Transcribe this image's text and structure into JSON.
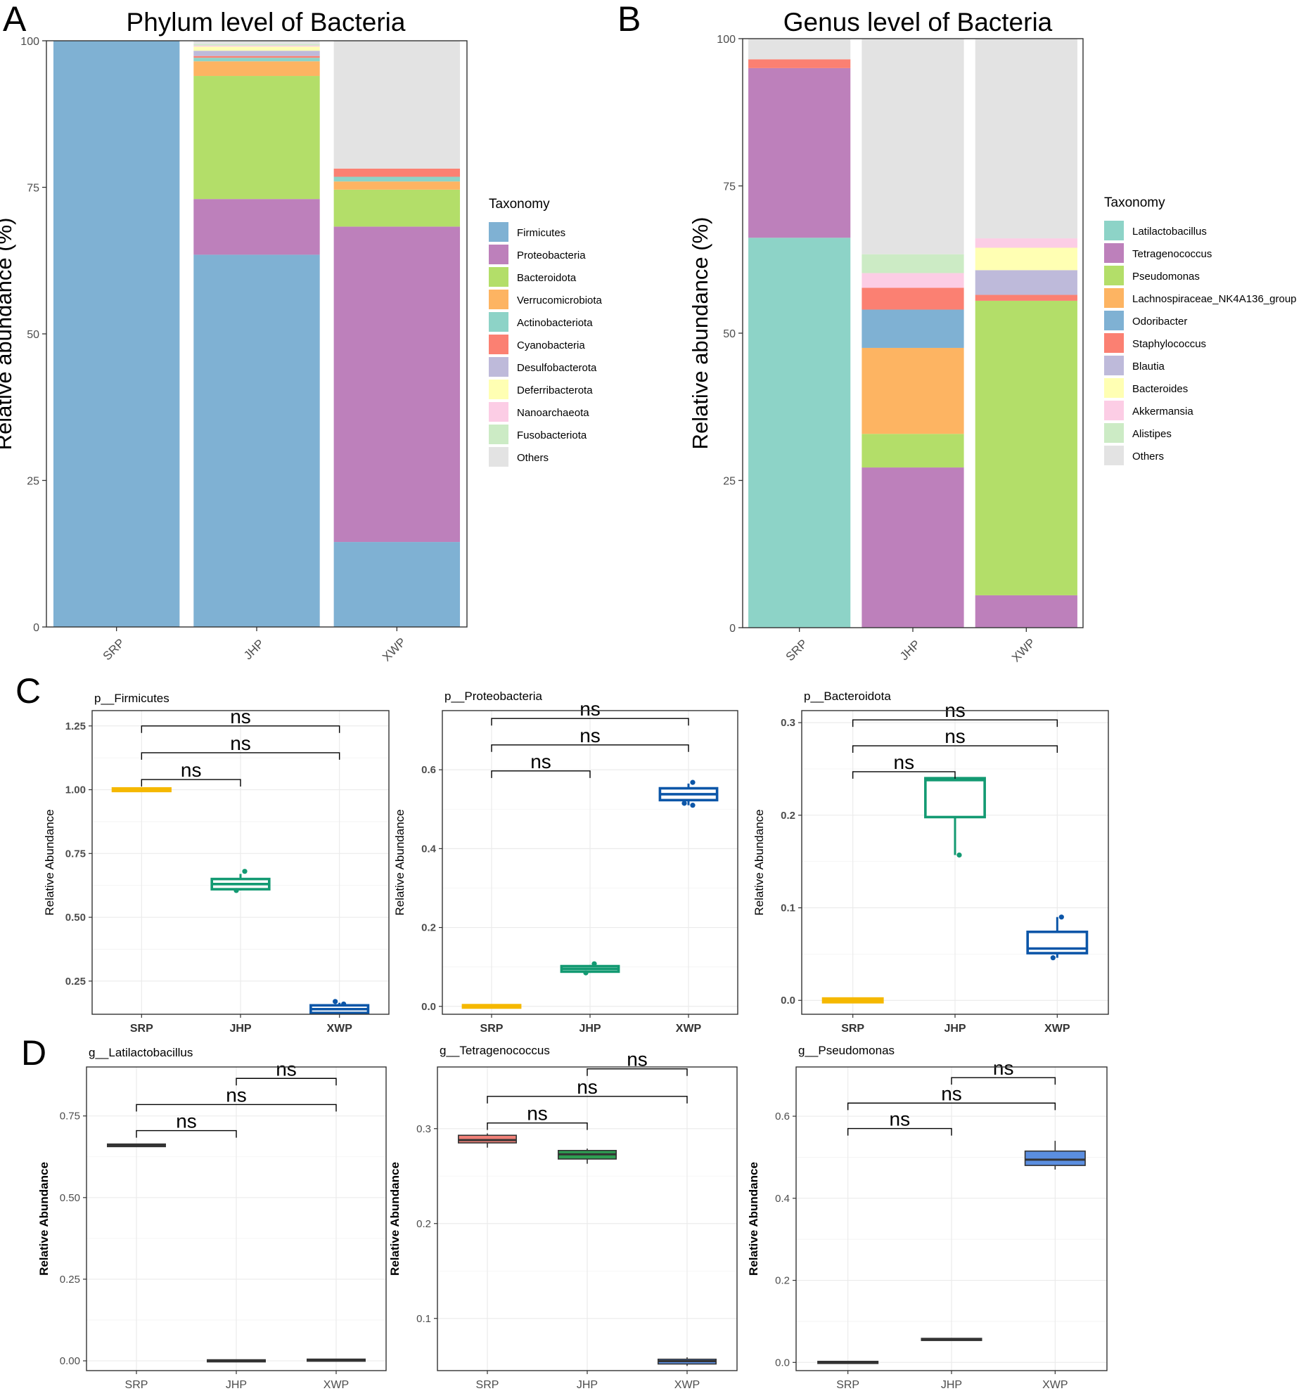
{
  "panel_letters": [
    "A",
    "B",
    "C",
    "D"
  ],
  "chart_data": [
    {
      "panel": "A",
      "type": "bar",
      "stacked": true,
      "title": "Phylum level of Bacteria",
      "xlabel": "",
      "ylabel": "Relative abundance (%)",
      "ylim": [
        0,
        100
      ],
      "yticks": [
        0,
        25,
        50,
        75,
        100
      ],
      "categories": [
        "SRP",
        "JHP",
        "XWP"
      ],
      "legend_title": "Taxonomy",
      "legend_position": "right",
      "series": [
        {
          "name": "Firmicutes",
          "color": "#7fb1d3",
          "values": [
            100,
            63.5,
            14.5
          ]
        },
        {
          "name": "Proteobacteria",
          "color": "#bd80bb",
          "values": [
            0,
            9.5,
            53.8
          ]
        },
        {
          "name": "Bacteroidota",
          "color": "#b3de69",
          "values": [
            0,
            21.0,
            6.3
          ]
        },
        {
          "name": "Verrucomicrobiota",
          "color": "#fdb462",
          "values": [
            0,
            2.5,
            1.4
          ]
        },
        {
          "name": "Actinobacteriota",
          "color": "#8dd3c7",
          "values": [
            0,
            0.6,
            0.8
          ]
        },
        {
          "name": "Cyanobacteria",
          "color": "#fb8072",
          "values": [
            0,
            0.3,
            1.4
          ]
        },
        {
          "name": "Desulfobacterota",
          "color": "#bebada",
          "values": [
            0,
            0.9,
            0
          ]
        },
        {
          "name": "Deferribacterota",
          "color": "#ffffb3",
          "values": [
            0,
            0.7,
            0
          ]
        },
        {
          "name": "Nanoarchaeota",
          "color": "#fccde5",
          "values": [
            0,
            0.2,
            0
          ]
        },
        {
          "name": "Fusobacteriota",
          "color": "#ccebc5",
          "values": [
            0,
            0.2,
            0
          ]
        },
        {
          "name": "Others",
          "color": "#e3e3e3",
          "values": [
            0,
            0.6,
            21.8
          ]
        }
      ]
    },
    {
      "panel": "B",
      "type": "bar",
      "stacked": true,
      "title": "Genus level of Bacteria",
      "xlabel": "",
      "ylabel": "Relative abundance (%)",
      "ylim": [
        0,
        100
      ],
      "yticks": [
        0,
        25,
        50,
        75,
        100
      ],
      "categories": [
        "SRP",
        "JHP",
        "XWP"
      ],
      "legend_title": "Taxonomy",
      "legend_position": "right",
      "series": [
        {
          "name": "Latilactobacillus",
          "color": "#8dd3c7",
          "values": [
            66.2,
            0,
            0
          ]
        },
        {
          "name": "Tetragenococcus",
          "color": "#bd80bb",
          "values": [
            28.8,
            27.2,
            5.5
          ]
        },
        {
          "name": "Pseudomonas",
          "color": "#b3de69",
          "values": [
            0,
            5.7,
            50.0
          ]
        },
        {
          "name": "Lachnospiraceae_NK4A136_group",
          "color": "#fdb462",
          "values": [
            0,
            14.6,
            0
          ]
        },
        {
          "name": "Odoribacter",
          "color": "#7fb1d3",
          "values": [
            0,
            6.5,
            0
          ]
        },
        {
          "name": "Staphylococcus",
          "color": "#fb8072",
          "values": [
            1.5,
            3.7,
            1.0
          ]
        },
        {
          "name": "Blautia",
          "color": "#bebada",
          "values": [
            0,
            0,
            4.2
          ]
        },
        {
          "name": "Bacteroides",
          "color": "#ffffb3",
          "values": [
            0,
            0,
            3.8
          ]
        },
        {
          "name": "Akkermansia",
          "color": "#fccde5",
          "values": [
            0,
            2.5,
            1.6
          ]
        },
        {
          "name": "Alistipes",
          "color": "#ccebc5",
          "values": [
            0,
            3.2,
            0
          ]
        },
        {
          "name": "Others",
          "color": "#e3e3e3",
          "values": [
            3.5,
            36.6,
            33.9
          ]
        }
      ]
    },
    {
      "panel": "C",
      "type": "box",
      "title": "p__Firmicutes",
      "ylabel": "Relative Abundance",
      "ylim": [
        0.12,
        1.31
      ],
      "yticks": [
        "0.25",
        "0.50",
        "0.75",
        "1.00",
        "1.25"
      ],
      "categories": [
        "SRP",
        "JHP",
        "XWP"
      ],
      "colors": [
        "#f5b800",
        "#139a72",
        "#0c56a8"
      ],
      "filled": false,
      "boxes": [
        {
          "q1": 0.995,
          "median": 1.0,
          "q3": 1.005,
          "wlo": 0.995,
          "whi": 1.005,
          "points": []
        },
        {
          "q1": 0.61,
          "median": 0.63,
          "q3": 0.65,
          "wlo": 0.605,
          "whi": 0.67,
          "points": [
            0.68,
            0.605
          ]
        },
        {
          "q1": 0.125,
          "median": 0.14,
          "q3": 0.155,
          "wlo": 0.125,
          "whi": 0.165,
          "points": [
            0.16,
            0.17
          ]
        }
      ],
      "brackets": [
        {
          "from": 0,
          "to": 1,
          "y": 1.04,
          "label": "ns"
        },
        {
          "from": 0,
          "to": 2,
          "y": 1.145,
          "label": "ns"
        },
        {
          "from": 0,
          "to": 2,
          "y": 1.25,
          "label": "ns"
        }
      ]
    },
    {
      "panel": "C",
      "type": "box",
      "title": "p__Proteobacteria",
      "ylabel": "Relative Abundance",
      "ylim": [
        -0.02,
        0.75
      ],
      "yticks": [
        "0.0",
        "0.2",
        "0.4",
        "0.6"
      ],
      "categories": [
        "SRP",
        "JHP",
        "XWP"
      ],
      "colors": [
        "#f5b800",
        "#139a72",
        "#0c56a8"
      ],
      "filled": false,
      "boxes": [
        {
          "q1": -0.003,
          "median": 0.0,
          "q3": 0.003,
          "wlo": -0.003,
          "whi": 0.003,
          "points": []
        },
        {
          "q1": 0.088,
          "median": 0.095,
          "q3": 0.102,
          "wlo": 0.085,
          "whi": 0.105,
          "points": [
            0.108,
            0.085
          ]
        },
        {
          "q1": 0.523,
          "median": 0.538,
          "q3": 0.553,
          "wlo": 0.51,
          "whi": 0.565,
          "points": [
            0.568,
            0.515,
            0.51
          ]
        }
      ],
      "brackets": [
        {
          "from": 0,
          "to": 1,
          "y": 0.597,
          "label": "ns"
        },
        {
          "from": 0,
          "to": 2,
          "y": 0.663,
          "label": "ns"
        },
        {
          "from": 0,
          "to": 2,
          "y": 0.73,
          "label": "ns"
        }
      ]
    },
    {
      "panel": "C",
      "type": "box",
      "title": "p__Bacteroidota",
      "ylabel": "Relative Abundance",
      "ylim": [
        -0.015,
        0.313
      ],
      "yticks": [
        "0.0",
        "0.1",
        "0.2",
        "0.3"
      ],
      "categories": [
        "SRP",
        "JHP",
        "XWP"
      ],
      "colors": [
        "#f5b800",
        "#139a72",
        "#0c56a8"
      ],
      "filled": false,
      "boxes": [
        {
          "q1": -0.002,
          "median": 0.0,
          "q3": 0.002,
          "wlo": -0.002,
          "whi": 0.002,
          "points": []
        },
        {
          "q1": 0.198,
          "median": 0.238,
          "q3": 0.24,
          "wlo": 0.157,
          "whi": 0.24,
          "points": [
            0.157
          ]
        },
        {
          "q1": 0.051,
          "median": 0.056,
          "q3": 0.074,
          "wlo": 0.046,
          "whi": 0.09,
          "points": [
            0.09,
            0.046
          ]
        }
      ],
      "brackets": [
        {
          "from": 0,
          "to": 1,
          "y": 0.247,
          "label": "ns"
        },
        {
          "from": 0,
          "to": 2,
          "y": 0.275,
          "label": "ns"
        },
        {
          "from": 0,
          "to": 2,
          "y": 0.303,
          "label": "ns"
        }
      ]
    },
    {
      "panel": "D",
      "type": "box",
      "title": "g__Latilactobacillus",
      "ylabel": "Relative Abundance",
      "ylim": [
        -0.03,
        0.9
      ],
      "yticks": [
        "0.00",
        "0.25",
        "0.50",
        "0.75"
      ],
      "categories": [
        "SRP",
        "JHP",
        "XWP"
      ],
      "colors": [
        "#f08078",
        "#2e9e52",
        "#5b8ee0"
      ],
      "filled": true,
      "boxes": [
        {
          "q1": 0.656,
          "median": 0.66,
          "q3": 0.664,
          "wlo": 0.656,
          "whi": 0.664,
          "points": []
        },
        {
          "q1": -0.002,
          "median": 0.0,
          "q3": 0.002,
          "wlo": -0.002,
          "whi": 0.002,
          "points": []
        },
        {
          "q1": 0.0,
          "median": 0.002,
          "q3": 0.004,
          "wlo": 0.0,
          "whi": 0.004,
          "points": []
        }
      ],
      "brackets": [
        {
          "from": 0,
          "to": 1,
          "y": 0.705,
          "label": "ns"
        },
        {
          "from": 0,
          "to": 2,
          "y": 0.785,
          "label": "ns"
        },
        {
          "from": 1,
          "to": 2,
          "y": 0.865,
          "label": "ns"
        }
      ]
    },
    {
      "panel": "D",
      "type": "box",
      "title": "g__Tetragenococcus",
      "ylabel": "Relative Abundance",
      "ylim": [
        0.045,
        0.365
      ],
      "yticks": [
        "0.1",
        "0.2",
        "0.3"
      ],
      "categories": [
        "SRP",
        "JHP",
        "XWP"
      ],
      "colors": [
        "#f08078",
        "#2e9e52",
        "#5b8ee0"
      ],
      "filled": true,
      "boxes": [
        {
          "q1": 0.285,
          "median": 0.288,
          "q3": 0.293,
          "wlo": 0.28,
          "whi": 0.295,
          "points": []
        },
        {
          "q1": 0.268,
          "median": 0.273,
          "q3": 0.277,
          "wlo": 0.263,
          "whi": 0.279,
          "points": []
        },
        {
          "q1": 0.052,
          "median": 0.055,
          "q3": 0.057,
          "wlo": 0.05,
          "whi": 0.059,
          "points": []
        }
      ],
      "brackets": [
        {
          "from": 0,
          "to": 1,
          "y": 0.306,
          "label": "ns"
        },
        {
          "from": 0,
          "to": 2,
          "y": 0.334,
          "label": "ns"
        },
        {
          "from": 1,
          "to": 2,
          "y": 0.363,
          "label": "ns"
        }
      ]
    },
    {
      "panel": "D",
      "type": "box",
      "title": "g__Pseudomonas",
      "ylabel": "Relative Abundance",
      "ylim": [
        -0.02,
        0.72
      ],
      "yticks": [
        "0.0",
        "0.2",
        "0.4",
        "0.6"
      ],
      "categories": [
        "SRP",
        "JHP",
        "XWP"
      ],
      "colors": [
        "#f08078",
        "#2e9e52",
        "#5b8ee0"
      ],
      "filled": true,
      "boxes": [
        {
          "q1": -0.002,
          "median": 0.0,
          "q3": 0.002,
          "wlo": -0.002,
          "whi": 0.002,
          "points": []
        },
        {
          "q1": 0.054,
          "median": 0.056,
          "q3": 0.058,
          "wlo": 0.054,
          "whi": 0.058,
          "points": []
        },
        {
          "q1": 0.48,
          "median": 0.494,
          "q3": 0.515,
          "wlo": 0.47,
          "whi": 0.54,
          "points": []
        }
      ],
      "brackets": [
        {
          "from": 0,
          "to": 1,
          "y": 0.57,
          "label": "ns"
        },
        {
          "from": 0,
          "to": 2,
          "y": 0.632,
          "label": "ns"
        },
        {
          "from": 1,
          "to": 2,
          "y": 0.694,
          "label": "ns"
        }
      ]
    }
  ]
}
